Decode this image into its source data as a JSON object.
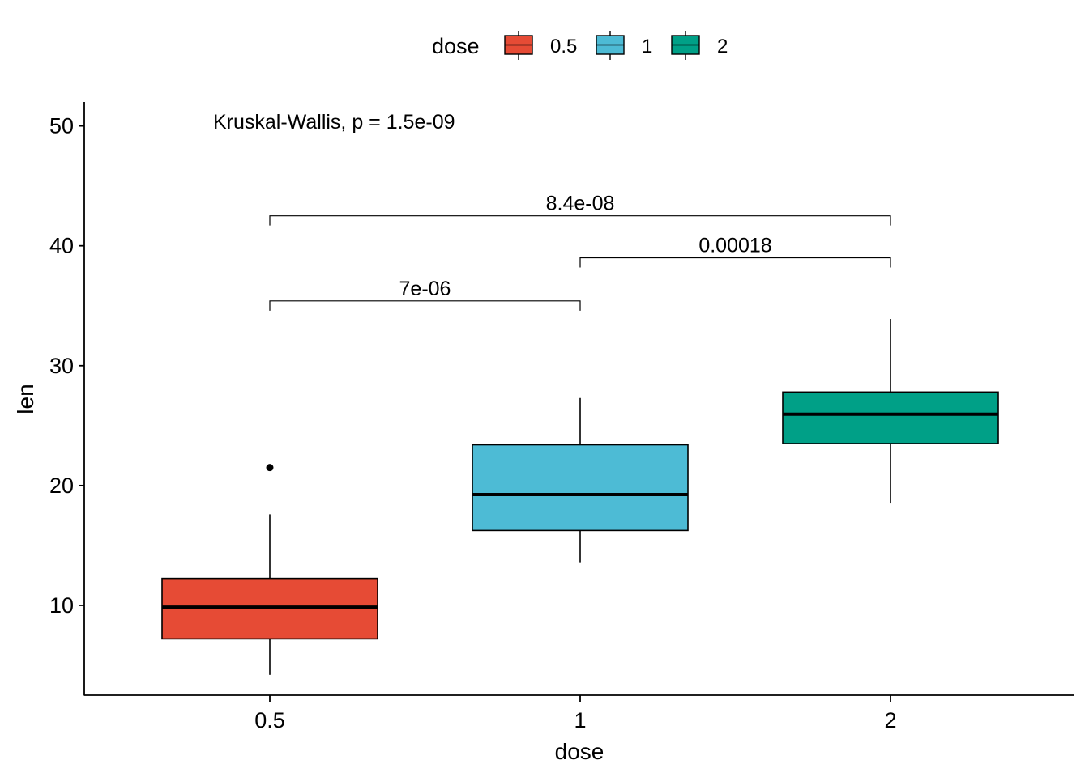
{
  "chart_data": {
    "type": "box",
    "xlabel": "dose",
    "ylabel": "len",
    "categories": [
      "0.5",
      "1",
      "2"
    ],
    "ylim": [
      2.5,
      52
    ],
    "yticks": [
      10,
      20,
      30,
      40,
      50
    ],
    "grid": false,
    "legend": {
      "title": "dose",
      "position": "top",
      "entries": [
        {
          "label": "0.5",
          "color": "#E64B35"
        },
        {
          "label": "1",
          "color": "#4DBBD5"
        },
        {
          "label": "2",
          "color": "#00A087"
        }
      ]
    },
    "boxes": [
      {
        "category": "0.5",
        "color": "#E64B35",
        "lower_whisker": 4.2,
        "q1": 7.2,
        "median": 9.85,
        "q3": 12.25,
        "upper_whisker": 17.6,
        "outliers": [
          21.5
        ]
      },
      {
        "category": "1",
        "color": "#4DBBD5",
        "lower_whisker": 13.6,
        "q1": 16.25,
        "median": 19.25,
        "q3": 23.4,
        "upper_whisker": 27.3,
        "outliers": []
      },
      {
        "category": "2",
        "color": "#00A087",
        "lower_whisker": 18.5,
        "q1": 23.5,
        "median": 25.95,
        "q3": 27.8,
        "upper_whisker": 33.9,
        "outliers": []
      }
    ],
    "annotations": [
      {
        "text": "Kruskal-Wallis, p = 1.5e-09",
        "x": "0.5",
        "y": 50.5
      }
    ],
    "comparisons": [
      {
        "group1": "0.5",
        "group2": "1",
        "label": "7e-06",
        "y": 35.4
      },
      {
        "group1": "1",
        "group2": "2",
        "label": "0.00018",
        "y": 39
      },
      {
        "group1": "0.5",
        "group2": "2",
        "label": "8.4e-08",
        "y": 42.5
      }
    ]
  }
}
